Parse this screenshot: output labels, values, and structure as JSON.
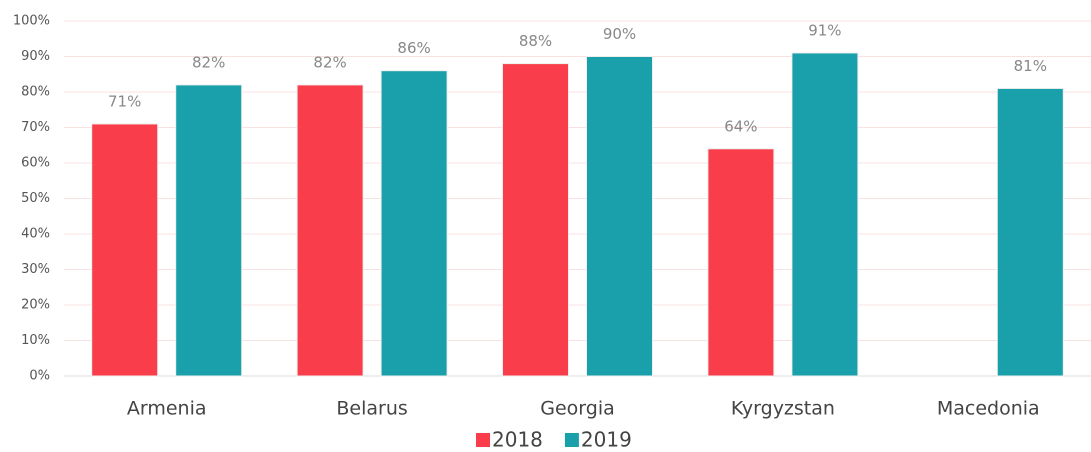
{
  "chart_data": {
    "type": "bar",
    "categories": [
      "Armenia",
      "Belarus",
      "Georgia",
      "Kyrgyzstan",
      "Macedonia"
    ],
    "series": [
      {
        "name": "2018",
        "color": "#f93d4a",
        "values": [
          71,
          82,
          88,
          64,
          null
        ],
        "value_labels": [
          "71%",
          "82%",
          "88%",
          "64%",
          null
        ]
      },
      {
        "name": "2019",
        "color": "#19a0ab",
        "values": [
          82,
          86,
          90,
          91,
          81
        ],
        "value_labels": [
          "82%",
          "86%",
          "90%",
          "91%",
          "81%"
        ]
      }
    ],
    "ylim": [
      0,
      100
    ],
    "yticks": [
      {
        "value": 0,
        "label": "0%"
      },
      {
        "value": 10,
        "label": "10%"
      },
      {
        "value": 20,
        "label": "20%"
      },
      {
        "value": 30,
        "label": "30%"
      },
      {
        "value": 40,
        "label": "40%"
      },
      {
        "value": 50,
        "label": "50%"
      },
      {
        "value": 60,
        "label": "60%"
      },
      {
        "value": 70,
        "label": "70%"
      },
      {
        "value": 80,
        "label": "80%"
      },
      {
        "value": 90,
        "label": "90%"
      },
      {
        "value": 100,
        "label": "100%"
      }
    ],
    "grid": true,
    "legend": "bottom"
  }
}
